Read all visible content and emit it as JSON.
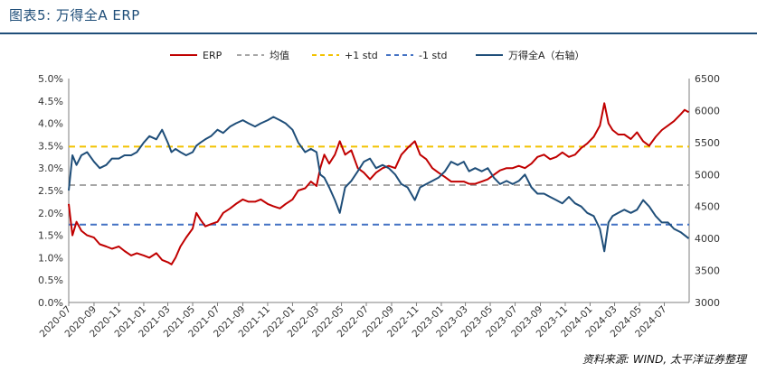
{
  "title": "图表5: 万得全A ERP",
  "source": "资料来源: WIND, 太平洋证券整理",
  "colors": {
    "erp": "#c00000",
    "mean": "#a6a6a6",
    "plus1": "#f2c200",
    "minus1": "#4472c4",
    "index": "#1f4e79",
    "title": "#1f4e79"
  },
  "chart_data": {
    "type": "line",
    "legend": [
      "ERP",
      "均值",
      "+1 std",
      "-1 std",
      "万得全A（右轴）"
    ],
    "legend_position": "top",
    "y_left": {
      "ticks": [
        "0.0%",
        "0.5%",
        "1.0%",
        "1.5%",
        "2.0%",
        "2.5%",
        "3.0%",
        "3.5%",
        "4.0%",
        "4.5%",
        "5.0%"
      ],
      "range": [
        0,
        5.0
      ]
    },
    "y_right": {
      "ticks": [
        "3000",
        "3500",
        "4000",
        "4500",
        "5000",
        "5500",
        "6000",
        "6500"
      ],
      "range": [
        3000,
        6500
      ]
    },
    "x_ticks": [
      "2020-07",
      "2020-09",
      "2020-11",
      "2021-01",
      "2021-03",
      "2021-05",
      "2021-07",
      "2021-09",
      "2021-11",
      "2022-01",
      "2022-03",
      "2022-05",
      "2022-07",
      "2022-09",
      "2022-11",
      "2023-01",
      "2023-03",
      "2023-05",
      "2023-07",
      "2023-09",
      "2023-11",
      "2024-01",
      "2024-03",
      "2024-05",
      "2024-07"
    ],
    "x_range": [
      "2020-07-01",
      "2024-08-31"
    ],
    "mean": 2.62,
    "plus1_std": 3.48,
    "minus1_std": 1.74,
    "series": [
      {
        "name": "ERP",
        "axis": "left",
        "points": [
          [
            "2020-07-01",
            2.2
          ],
          [
            "2020-07-10",
            1.5
          ],
          [
            "2020-07-20",
            1.8
          ],
          [
            "2020-08-01",
            1.6
          ],
          [
            "2020-08-15",
            1.5
          ],
          [
            "2020-09-01",
            1.45
          ],
          [
            "2020-09-15",
            1.3
          ],
          [
            "2020-10-01",
            1.25
          ],
          [
            "2020-10-15",
            1.2
          ],
          [
            "2020-11-01",
            1.25
          ],
          [
            "2020-11-15",
            1.15
          ],
          [
            "2020-12-01",
            1.05
          ],
          [
            "2020-12-15",
            1.1
          ],
          [
            "2021-01-01",
            1.05
          ],
          [
            "2021-01-15",
            1.0
          ],
          [
            "2021-02-01",
            1.1
          ],
          [
            "2021-02-15",
            0.95
          ],
          [
            "2021-03-01",
            0.9
          ],
          [
            "2021-03-10",
            0.85
          ],
          [
            "2021-03-20",
            1.0
          ],
          [
            "2021-04-01",
            1.25
          ],
          [
            "2021-04-15",
            1.45
          ],
          [
            "2021-05-01",
            1.65
          ],
          [
            "2021-05-10",
            2.0
          ],
          [
            "2021-05-20",
            1.85
          ],
          [
            "2021-06-01",
            1.7
          ],
          [
            "2021-06-15",
            1.75
          ],
          [
            "2021-07-01",
            1.8
          ],
          [
            "2021-07-15",
            2.0
          ],
          [
            "2021-08-01",
            2.1
          ],
          [
            "2021-08-15",
            2.2
          ],
          [
            "2021-09-01",
            2.3
          ],
          [
            "2021-09-15",
            2.25
          ],
          [
            "2021-10-01",
            2.25
          ],
          [
            "2021-10-15",
            2.3
          ],
          [
            "2021-11-01",
            2.2
          ],
          [
            "2021-11-15",
            2.15
          ],
          [
            "2021-12-01",
            2.1
          ],
          [
            "2021-12-15",
            2.2
          ],
          [
            "2022-01-01",
            2.3
          ],
          [
            "2022-01-15",
            2.5
          ],
          [
            "2022-02-01",
            2.55
          ],
          [
            "2022-02-15",
            2.7
          ],
          [
            "2022-03-01",
            2.6
          ],
          [
            "2022-03-10",
            3.0
          ],
          [
            "2022-03-20",
            3.3
          ],
          [
            "2022-04-01",
            3.1
          ],
          [
            "2022-04-15",
            3.3
          ],
          [
            "2022-04-27",
            3.6
          ],
          [
            "2022-05-10",
            3.3
          ],
          [
            "2022-05-25",
            3.4
          ],
          [
            "2022-06-10",
            3.0
          ],
          [
            "2022-06-25",
            2.9
          ],
          [
            "2022-07-10",
            2.75
          ],
          [
            "2022-07-25",
            2.9
          ],
          [
            "2022-08-10",
            3.0
          ],
          [
            "2022-08-25",
            3.05
          ],
          [
            "2022-09-10",
            3.0
          ],
          [
            "2022-09-25",
            3.3
          ],
          [
            "2022-10-10",
            3.45
          ],
          [
            "2022-10-28",
            3.6
          ],
          [
            "2022-11-10",
            3.3
          ],
          [
            "2022-11-25",
            3.2
          ],
          [
            "2022-12-10",
            3.0
          ],
          [
            "2022-12-25",
            2.9
          ],
          [
            "2023-01-10",
            2.8
          ],
          [
            "2023-01-25",
            2.7
          ],
          [
            "2023-02-10",
            2.7
          ],
          [
            "2023-02-25",
            2.7
          ],
          [
            "2023-03-10",
            2.65
          ],
          [
            "2023-03-25",
            2.65
          ],
          [
            "2023-04-10",
            2.7
          ],
          [
            "2023-04-25",
            2.75
          ],
          [
            "2023-05-10",
            2.85
          ],
          [
            "2023-05-25",
            2.95
          ],
          [
            "2023-06-10",
            3.0
          ],
          [
            "2023-06-25",
            3.0
          ],
          [
            "2023-07-10",
            3.05
          ],
          [
            "2023-07-25",
            3.0
          ],
          [
            "2023-08-10",
            3.1
          ],
          [
            "2023-08-25",
            3.25
          ],
          [
            "2023-09-10",
            3.3
          ],
          [
            "2023-09-25",
            3.2
          ],
          [
            "2023-10-10",
            3.25
          ],
          [
            "2023-10-25",
            3.35
          ],
          [
            "2023-11-10",
            3.25
          ],
          [
            "2023-11-25",
            3.3
          ],
          [
            "2023-12-10",
            3.45
          ],
          [
            "2023-12-25",
            3.55
          ],
          [
            "2024-01-10",
            3.7
          ],
          [
            "2024-01-25",
            3.95
          ],
          [
            "2024-02-05",
            4.45
          ],
          [
            "2024-02-15",
            4.0
          ],
          [
            "2024-02-25",
            3.85
          ],
          [
            "2024-03-10",
            3.75
          ],
          [
            "2024-03-25",
            3.75
          ],
          [
            "2024-04-10",
            3.65
          ],
          [
            "2024-04-25",
            3.8
          ],
          [
            "2024-05-10",
            3.6
          ],
          [
            "2024-05-25",
            3.5
          ],
          [
            "2024-06-10",
            3.7
          ],
          [
            "2024-06-25",
            3.85
          ],
          [
            "2024-07-10",
            3.95
          ],
          [
            "2024-07-25",
            4.05
          ],
          [
            "2024-08-10",
            4.2
          ],
          [
            "2024-08-20",
            4.3
          ],
          [
            "2024-08-30",
            4.25
          ]
        ]
      },
      {
        "name": "万得全A（右轴）",
        "axis": "right",
        "points": [
          [
            "2020-07-01",
            4750
          ],
          [
            "2020-07-10",
            5300
          ],
          [
            "2020-07-20",
            5150
          ],
          [
            "2020-08-01",
            5300
          ],
          [
            "2020-08-15",
            5350
          ],
          [
            "2020-09-01",
            5200
          ],
          [
            "2020-09-15",
            5100
          ],
          [
            "2020-10-01",
            5150
          ],
          [
            "2020-10-15",
            5250
          ],
          [
            "2020-11-01",
            5250
          ],
          [
            "2020-11-15",
            5300
          ],
          [
            "2020-12-01",
            5300
          ],
          [
            "2020-12-15",
            5350
          ],
          [
            "2021-01-01",
            5500
          ],
          [
            "2021-01-15",
            5600
          ],
          [
            "2021-02-01",
            5550
          ],
          [
            "2021-02-15",
            5700
          ],
          [
            "2021-03-01",
            5500
          ],
          [
            "2021-03-10",
            5350
          ],
          [
            "2021-03-20",
            5400
          ],
          [
            "2021-04-01",
            5350
          ],
          [
            "2021-04-15",
            5300
          ],
          [
            "2021-05-01",
            5350
          ],
          [
            "2021-05-10",
            5450
          ],
          [
            "2021-05-20",
            5500
          ],
          [
            "2021-06-01",
            5550
          ],
          [
            "2021-06-15",
            5600
          ],
          [
            "2021-07-01",
            5700
          ],
          [
            "2021-07-15",
            5650
          ],
          [
            "2021-08-01",
            5750
          ],
          [
            "2021-08-15",
            5800
          ],
          [
            "2021-09-01",
            5850
          ],
          [
            "2021-09-15",
            5800
          ],
          [
            "2021-10-01",
            5750
          ],
          [
            "2021-10-15",
            5800
          ],
          [
            "2021-11-01",
            5850
          ],
          [
            "2021-11-15",
            5900
          ],
          [
            "2021-12-01",
            5850
          ],
          [
            "2021-12-15",
            5800
          ],
          [
            "2022-01-01",
            5700
          ],
          [
            "2022-01-15",
            5500
          ],
          [
            "2022-02-01",
            5350
          ],
          [
            "2022-02-15",
            5400
          ],
          [
            "2022-03-01",
            5350
          ],
          [
            "2022-03-10",
            5000
          ],
          [
            "2022-03-20",
            4950
          ],
          [
            "2022-04-01",
            4800
          ],
          [
            "2022-04-15",
            4600
          ],
          [
            "2022-04-27",
            4400
          ],
          [
            "2022-05-10",
            4800
          ],
          [
            "2022-05-25",
            4900
          ],
          [
            "2022-06-10",
            5050
          ],
          [
            "2022-06-25",
            5200
          ],
          [
            "2022-07-10",
            5250
          ],
          [
            "2022-07-25",
            5100
          ],
          [
            "2022-08-10",
            5150
          ],
          [
            "2022-08-25",
            5100
          ],
          [
            "2022-09-10",
            5000
          ],
          [
            "2022-09-25",
            4850
          ],
          [
            "2022-10-10",
            4800
          ],
          [
            "2022-10-28",
            4600
          ],
          [
            "2022-11-10",
            4800
          ],
          [
            "2022-11-25",
            4850
          ],
          [
            "2022-12-10",
            4900
          ],
          [
            "2022-12-25",
            4950
          ],
          [
            "2023-01-10",
            5050
          ],
          [
            "2023-01-25",
            5200
          ],
          [
            "2023-02-10",
            5150
          ],
          [
            "2023-02-25",
            5200
          ],
          [
            "2023-03-10",
            5050
          ],
          [
            "2023-03-25",
            5100
          ],
          [
            "2023-04-10",
            5050
          ],
          [
            "2023-04-25",
            5100
          ],
          [
            "2023-05-10",
            4950
          ],
          [
            "2023-05-25",
            4850
          ],
          [
            "2023-06-10",
            4900
          ],
          [
            "2023-06-25",
            4850
          ],
          [
            "2023-07-10",
            4900
          ],
          [
            "2023-07-25",
            5000
          ],
          [
            "2023-08-10",
            4800
          ],
          [
            "2023-08-25",
            4700
          ],
          [
            "2023-09-10",
            4700
          ],
          [
            "2023-09-25",
            4650
          ],
          [
            "2023-10-10",
            4600
          ],
          [
            "2023-10-25",
            4550
          ],
          [
            "2023-11-10",
            4650
          ],
          [
            "2023-11-25",
            4550
          ],
          [
            "2023-12-10",
            4500
          ],
          [
            "2023-12-25",
            4400
          ],
          [
            "2024-01-10",
            4350
          ],
          [
            "2024-01-25",
            4150
          ],
          [
            "2024-02-05",
            3800
          ],
          [
            "2024-02-15",
            4250
          ],
          [
            "2024-02-25",
            4350
          ],
          [
            "2024-03-10",
            4400
          ],
          [
            "2024-03-25",
            4450
          ],
          [
            "2024-04-10",
            4400
          ],
          [
            "2024-04-25",
            4450
          ],
          [
            "2024-05-10",
            4600
          ],
          [
            "2024-05-25",
            4500
          ],
          [
            "2024-06-10",
            4350
          ],
          [
            "2024-06-25",
            4250
          ],
          [
            "2024-07-10",
            4250
          ],
          [
            "2024-07-25",
            4150
          ],
          [
            "2024-08-10",
            4100
          ],
          [
            "2024-08-20",
            4050
          ],
          [
            "2024-08-30",
            4000
          ]
        ]
      }
    ]
  }
}
